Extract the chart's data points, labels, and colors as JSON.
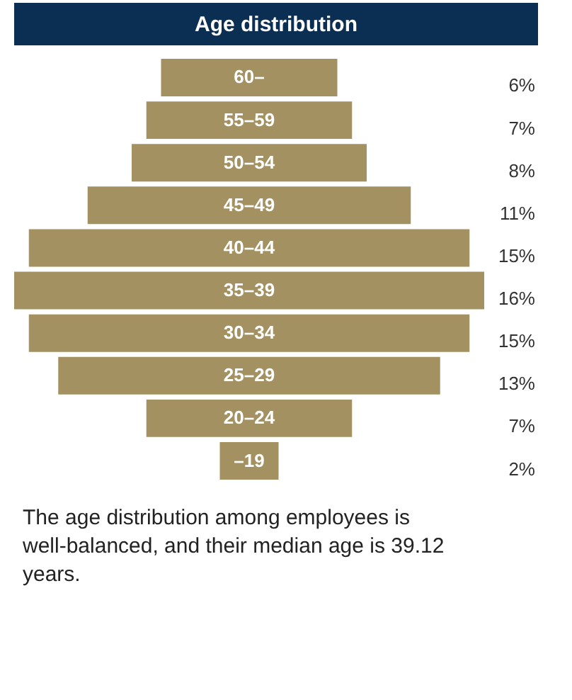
{
  "chart_data": {
    "type": "other",
    "title": "Age distribution",
    "categories": [
      "60–",
      "55–59",
      "50–54",
      "45–49",
      "40–44",
      "35–39",
      "30–34",
      "25–29",
      "20–24",
      "–19"
    ],
    "values": [
      6,
      7,
      8,
      11,
      15,
      16,
      15,
      13,
      7,
      2
    ],
    "value_labels": [
      "6%",
      "7%",
      "8%",
      "11%",
      "15%",
      "16%",
      "15%",
      "13%",
      "7%",
      "2%"
    ],
    "color": "#a39161",
    "annotations": [
      "The age distribution among employees is well-balanced, and their median age is 39.12 years."
    ]
  }
}
